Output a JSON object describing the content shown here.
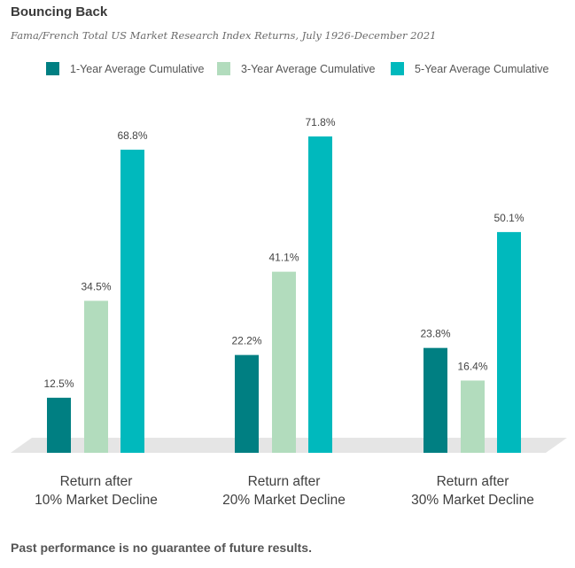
{
  "chart_data": {
    "type": "bar",
    "title": "Bouncing Back",
    "subtitle": "Fama/French Total US Market Research Index Returns, July 1926-December 2021",
    "categories": [
      [
        "Return after",
        "10% Market Decline"
      ],
      [
        "Return after",
        "20% Market Decline"
      ],
      [
        "Return after",
        "30% Market Decline"
      ]
    ],
    "series": [
      {
        "name": "1-Year Average Cumulative",
        "color": "#007f82",
        "values": [
          12.5,
          22.2,
          23.8
        ]
      },
      {
        "name": "3-Year Average Cumulative",
        "color": "#b2dcbd",
        "values": [
          34.5,
          41.1,
          16.4
        ]
      },
      {
        "name": "5-Year Average Cumulative",
        "color": "#00b9bd",
        "values": [
          68.8,
          71.8,
          50.1
        ]
      }
    ],
    "value_suffix": "%",
    "ylim": [
      0,
      72
    ],
    "grid": false,
    "legend": "top"
  },
  "footnote": "Past performance is no guarantee of future results."
}
